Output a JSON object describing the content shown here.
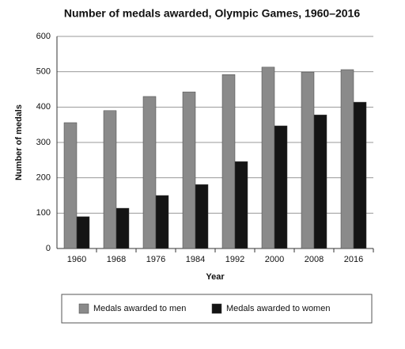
{
  "chart_data": {
    "type": "bar",
    "title": "Number of medals awarded, Olympic Games, 1960–2016",
    "x_label": "Year",
    "y_label": "Number of medals",
    "categories": [
      "1960",
      "1968",
      "1976",
      "1984",
      "1992",
      "2000",
      "2008",
      "2016"
    ],
    "series": [
      {
        "name": "Medals awarded to men",
        "color": "#8a8a8a",
        "values": [
          356,
          390,
          430,
          443,
          492,
          513,
          499,
          506
        ]
      },
      {
        "name": "Medals awarded to women",
        "color": "#141414",
        "values": [
          90,
          114,
          150,
          181,
          246,
          347,
          378,
          414
        ]
      }
    ],
    "ylim": [
      0,
      600
    ],
    "yticks": [
      0,
      100,
      200,
      300,
      400,
      500,
      600
    ],
    "grid": true,
    "legend": "bottom"
  }
}
